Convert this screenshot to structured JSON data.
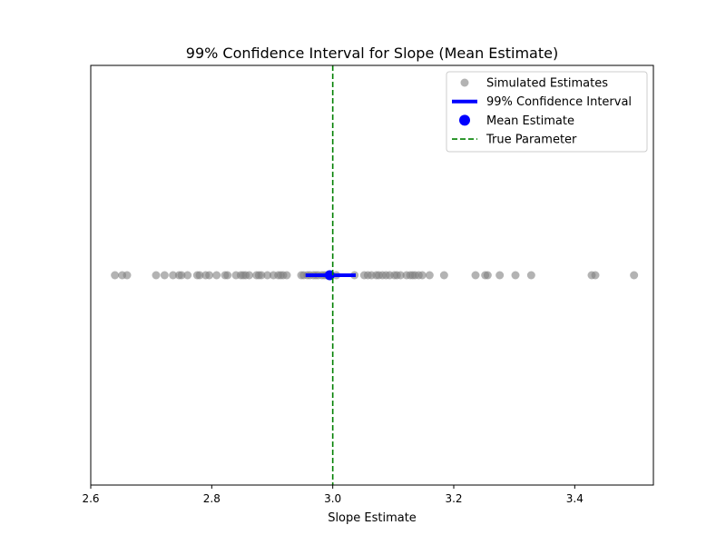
{
  "chart_data": {
    "type": "scatter",
    "title": "99% Confidence Interval for Slope (Mean Estimate)",
    "xlabel": "Slope Estimate",
    "ylabel": "",
    "xlim": [
      2.6,
      3.53
    ],
    "xticks": [
      2.6,
      2.8,
      3.0,
      3.2,
      3.4
    ],
    "xtick_labels": [
      "2.6",
      "2.8",
      "3.0",
      "3.2",
      "3.4"
    ],
    "yticks": [],
    "grid": false,
    "legend_position": "upper-right",
    "legend": [
      {
        "label": "Simulated Estimates",
        "kind": "marker-gray"
      },
      {
        "label": "99% Confidence Interval",
        "kind": "line-blue"
      },
      {
        "label": "Mean Estimate",
        "kind": "marker-blue"
      },
      {
        "label": "True Parameter",
        "kind": "dashed-green"
      }
    ],
    "series": [
      {
        "name": "Simulated Estimates",
        "kind": "scatter",
        "color": "#808080",
        "x": [
          2.64,
          2.652,
          2.66,
          2.708,
          2.722,
          2.736,
          2.746,
          2.75,
          2.76,
          2.776,
          2.78,
          2.79,
          2.796,
          2.808,
          2.822,
          2.826,
          2.84,
          2.848,
          2.852,
          2.856,
          2.862,
          2.874,
          2.878,
          2.882,
          2.892,
          2.902,
          2.91,
          2.914,
          2.918,
          2.924,
          2.948,
          2.952,
          2.958,
          2.962,
          2.968,
          2.972,
          2.976,
          2.982,
          2.986,
          2.99,
          2.994,
          3.006,
          3.036,
          3.052,
          3.058,
          3.064,
          3.072,
          3.076,
          3.082,
          3.088,
          3.094,
          3.102,
          3.106,
          3.112,
          3.122,
          3.128,
          3.132,
          3.136,
          3.142,
          3.148,
          3.16,
          3.184,
          3.236,
          3.252,
          3.256,
          3.276,
          3.302,
          3.328,
          3.428,
          3.434,
          3.498
        ],
        "y": [
          0,
          0,
          0,
          0,
          0,
          0,
          0,
          0,
          0,
          0,
          0,
          0,
          0,
          0,
          0,
          0,
          0,
          0,
          0,
          0,
          0,
          0,
          0,
          0,
          0,
          0,
          0,
          0,
          0,
          0,
          0,
          0,
          0,
          0,
          0,
          0,
          0,
          0,
          0,
          0,
          0,
          0,
          0,
          0,
          0,
          0,
          0,
          0,
          0,
          0,
          0,
          0,
          0,
          0,
          0,
          0,
          0,
          0,
          0,
          0,
          0,
          0,
          0,
          0,
          0,
          0,
          0,
          0,
          0,
          0,
          0
        ]
      },
      {
        "name": "99% Confidence Interval",
        "kind": "interval",
        "color": "#0000ff",
        "x": [
          2.955,
          3.038
        ],
        "y": 0
      },
      {
        "name": "Mean Estimate",
        "kind": "point",
        "color": "#0000ff",
        "x": 2.995,
        "y": 0
      },
      {
        "name": "True Parameter",
        "kind": "vline",
        "color": "#008000",
        "x": 3.0
      }
    ]
  }
}
